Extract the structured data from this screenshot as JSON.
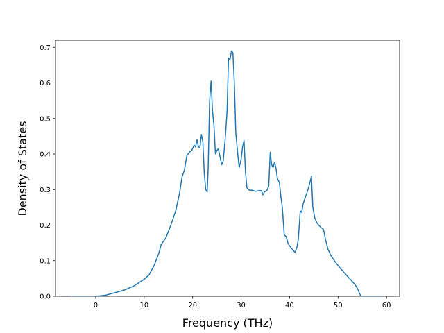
{
  "chart_data": {
    "type": "line",
    "title": "",
    "xlabel": "Frequency (THz)",
    "ylabel": "Density of States",
    "xlim": [
      -8.3,
      62.7
    ],
    "ylim": [
      0,
      0.72
    ],
    "xticks": [
      "0",
      "10",
      "20",
      "30",
      "40",
      "50",
      "60"
    ],
    "yticks": [
      "0.0",
      "0.1",
      "0.2",
      "0.3",
      "0.4",
      "0.5",
      "0.6",
      "0.7"
    ],
    "grid": false,
    "line_color": "#1f77b4",
    "series": [
      {
        "points": [
          [
            -5.5,
            0.0
          ],
          [
            -2,
            0.0
          ],
          [
            0,
            0.0
          ],
          [
            2,
            0.003
          ],
          [
            4,
            0.01
          ],
          [
            6,
            0.018
          ],
          [
            8,
            0.03
          ],
          [
            10,
            0.048
          ],
          [
            11,
            0.06
          ],
          [
            12,
            0.085
          ],
          [
            13,
            0.12
          ],
          [
            13.5,
            0.145
          ],
          [
            14.5,
            0.165
          ],
          [
            15.5,
            0.2
          ],
          [
            16.5,
            0.24
          ],
          [
            17.3,
            0.29
          ],
          [
            17.8,
            0.335
          ],
          [
            18.3,
            0.355
          ],
          [
            18.8,
            0.395
          ],
          [
            19.3,
            0.405
          ],
          [
            19.8,
            0.41
          ],
          [
            20.3,
            0.425
          ],
          [
            20.6,
            0.42
          ],
          [
            20.9,
            0.44
          ],
          [
            21.2,
            0.42
          ],
          [
            21.5,
            0.418
          ],
          [
            21.8,
            0.455
          ],
          [
            22.1,
            0.435
          ],
          [
            22.4,
            0.345
          ],
          [
            22.7,
            0.3
          ],
          [
            23.0,
            0.293
          ],
          [
            23.2,
            0.36
          ],
          [
            23.5,
            0.55
          ],
          [
            23.8,
            0.605
          ],
          [
            24.1,
            0.52
          ],
          [
            24.4,
            0.48
          ],
          [
            24.7,
            0.4
          ],
          [
            25.0,
            0.41
          ],
          [
            25.3,
            0.415
          ],
          [
            25.6,
            0.395
          ],
          [
            26.0,
            0.37
          ],
          [
            26.3,
            0.38
          ],
          [
            26.7,
            0.44
          ],
          [
            27.1,
            0.52
          ],
          [
            27.4,
            0.67
          ],
          [
            27.7,
            0.665
          ],
          [
            28.0,
            0.69
          ],
          [
            28.3,
            0.685
          ],
          [
            28.6,
            0.6
          ],
          [
            28.9,
            0.46
          ],
          [
            29.3,
            0.4
          ],
          [
            29.6,
            0.362
          ],
          [
            30.0,
            0.385
          ],
          [
            30.3,
            0.42
          ],
          [
            30.6,
            0.438
          ],
          [
            30.9,
            0.35
          ],
          [
            31.2,
            0.305
          ],
          [
            31.7,
            0.298
          ],
          [
            32.3,
            0.298
          ],
          [
            33.0,
            0.295
          ],
          [
            33.7,
            0.297
          ],
          [
            34.2,
            0.297
          ],
          [
            34.5,
            0.285
          ],
          [
            34.8,
            0.293
          ],
          [
            35.3,
            0.297
          ],
          [
            35.7,
            0.31
          ],
          [
            36.0,
            0.405
          ],
          [
            36.3,
            0.37
          ],
          [
            36.6,
            0.362
          ],
          [
            36.9,
            0.377
          ],
          [
            37.2,
            0.36
          ],
          [
            37.5,
            0.33
          ],
          [
            37.9,
            0.32
          ],
          [
            38.2,
            0.28
          ],
          [
            38.5,
            0.25
          ],
          [
            38.9,
            0.172
          ],
          [
            39.3,
            0.168
          ],
          [
            39.7,
            0.148
          ],
          [
            40.2,
            0.138
          ],
          [
            40.7,
            0.13
          ],
          [
            41.1,
            0.123
          ],
          [
            41.5,
            0.137
          ],
          [
            41.8,
            0.16
          ],
          [
            42.0,
            0.2
          ],
          [
            42.2,
            0.24
          ],
          [
            42.5,
            0.236
          ],
          [
            42.8,
            0.26
          ],
          [
            43.3,
            0.28
          ],
          [
            43.8,
            0.3
          ],
          [
            44.2,
            0.32
          ],
          [
            44.5,
            0.338
          ],
          [
            44.8,
            0.25
          ],
          [
            45.2,
            0.22
          ],
          [
            45.7,
            0.205
          ],
          [
            46.2,
            0.197
          ],
          [
            46.6,
            0.192
          ],
          [
            47.0,
            0.188
          ],
          [
            47.4,
            0.16
          ],
          [
            47.9,
            0.133
          ],
          [
            48.5,
            0.115
          ],
          [
            49.5,
            0.095
          ],
          [
            50.5,
            0.078
          ],
          [
            51.5,
            0.063
          ],
          [
            52.5,
            0.048
          ],
          [
            53.5,
            0.033
          ],
          [
            54.0,
            0.022
          ],
          [
            54.3,
            0.012
          ],
          [
            54.7,
            0.0
          ],
          [
            56,
            0.0
          ],
          [
            58,
            0.0
          ],
          [
            59.5,
            0.0
          ]
        ]
      }
    ]
  }
}
